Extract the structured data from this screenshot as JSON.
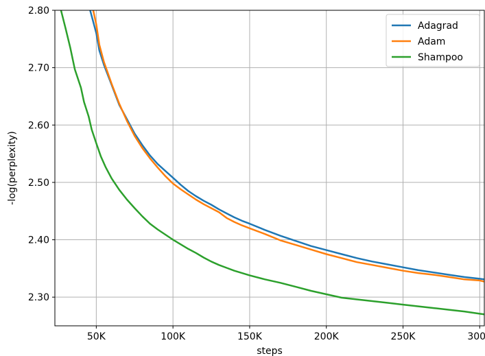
{
  "chart_data": {
    "type": "line",
    "title": "",
    "xlabel": "steps",
    "ylabel": "-log(perplexity)",
    "xlim": [
      23000,
      303000
    ],
    "ylim": [
      2.25,
      2.8
    ],
    "grid": true,
    "legend_position": "top-right",
    "x_ticks": [
      {
        "value": 50000,
        "label": "50K"
      },
      {
        "value": 100000,
        "label": "100K"
      },
      {
        "value": 150000,
        "label": "150K"
      },
      {
        "value": 200000,
        "label": "200K"
      },
      {
        "value": 250000,
        "label": "250K"
      },
      {
        "value": 300000,
        "label": "300K"
      }
    ],
    "y_ticks": [
      {
        "value": 2.3,
        "label": "2.30"
      },
      {
        "value": 2.4,
        "label": "2.40"
      },
      {
        "value": 2.5,
        "label": "2.50"
      },
      {
        "value": 2.6,
        "label": "2.60"
      },
      {
        "value": 2.7,
        "label": "2.70"
      },
      {
        "value": 2.8,
        "label": "2.80"
      }
    ],
    "series": [
      {
        "name": "Adagrad",
        "color": "#1f77b4",
        "x": [
          46000,
          48000,
          50000,
          52000,
          55000,
          60000,
          65000,
          70000,
          75000,
          80000,
          85000,
          90000,
          95000,
          100000,
          105000,
          110000,
          115000,
          120000,
          125000,
          130000,
          135000,
          140000,
          145000,
          150000,
          160000,
          170000,
          180000,
          190000,
          200000,
          210000,
          220000,
          230000,
          240000,
          250000,
          260000,
          270000,
          280000,
          290000,
          300000,
          303000
        ],
        "y": [
          2.8,
          2.78,
          2.76,
          2.73,
          2.705,
          2.67,
          2.635,
          2.61,
          2.585,
          2.565,
          2.547,
          2.532,
          2.52,
          2.508,
          2.496,
          2.485,
          2.476,
          2.468,
          2.461,
          2.453,
          2.446,
          2.439,
          2.433,
          2.428,
          2.417,
          2.407,
          2.398,
          2.389,
          2.382,
          2.375,
          2.368,
          2.362,
          2.357,
          2.352,
          2.347,
          2.343,
          2.339,
          2.335,
          2.332,
          2.331
        ]
      },
      {
        "name": "Adam",
        "color": "#ff7f0e",
        "x": [
          48000,
          50000,
          52000,
          55000,
          60000,
          65000,
          70000,
          75000,
          80000,
          85000,
          90000,
          95000,
          100000,
          105000,
          110000,
          115000,
          120000,
          125000,
          130000,
          135000,
          140000,
          145000,
          150000,
          160000,
          170000,
          180000,
          190000,
          200000,
          210000,
          220000,
          230000,
          240000,
          250000,
          260000,
          270000,
          280000,
          290000,
          300000,
          303000
        ],
        "y": [
          2.8,
          2.775,
          2.74,
          2.71,
          2.672,
          2.637,
          2.607,
          2.581,
          2.56,
          2.542,
          2.526,
          2.511,
          2.498,
          2.488,
          2.479,
          2.47,
          2.462,
          2.455,
          2.448,
          2.438,
          2.431,
          2.425,
          2.42,
          2.41,
          2.399,
          2.391,
          2.383,
          2.375,
          2.368,
          2.361,
          2.356,
          2.351,
          2.346,
          2.342,
          2.339,
          2.335,
          2.331,
          2.329,
          2.327
        ]
      },
      {
        "name": "Shampoo",
        "color": "#2ca02c",
        "x": [
          27000,
          30000,
          33000,
          36000,
          40000,
          42000,
          45000,
          47000,
          50000,
          53000,
          56000,
          60000,
          65000,
          70000,
          75000,
          80000,
          85000,
          90000,
          95000,
          100000,
          105000,
          110000,
          115000,
          120000,
          125000,
          130000,
          135000,
          140000,
          145000,
          150000,
          160000,
          170000,
          180000,
          190000,
          200000,
          210000,
          220000,
          230000,
          240000,
          250000,
          260000,
          270000,
          280000,
          290000,
          300000,
          303000
        ],
        "y": [
          2.8,
          2.768,
          2.735,
          2.697,
          2.665,
          2.64,
          2.615,
          2.592,
          2.568,
          2.545,
          2.527,
          2.507,
          2.487,
          2.47,
          2.455,
          2.441,
          2.428,
          2.418,
          2.409,
          2.4,
          2.392,
          2.384,
          2.377,
          2.369,
          2.362,
          2.356,
          2.351,
          2.346,
          2.342,
          2.338,
          2.331,
          2.325,
          2.318,
          2.311,
          2.305,
          2.299,
          2.296,
          2.293,
          2.29,
          2.287,
          2.284,
          2.281,
          2.278,
          2.275,
          2.271,
          2.27
        ]
      }
    ]
  }
}
